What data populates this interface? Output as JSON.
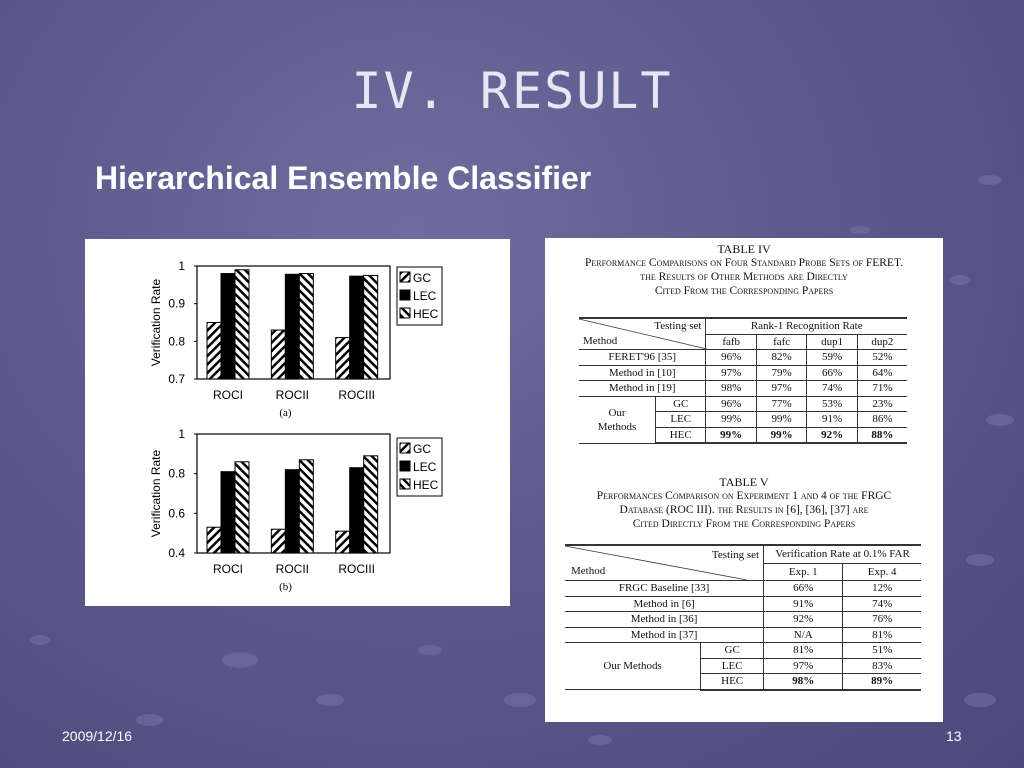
{
  "slide": {
    "title": "IV. RESULT",
    "subtitle": "Hierarchical Ensemble Classifier",
    "date": "2009/12/16",
    "page_number": "13"
  },
  "colors": {
    "background": "#5a5a8c",
    "title": "#e6e6f6",
    "subtitle": "#ffffff"
  },
  "chart_data": [
    {
      "type": "bar",
      "caption": "(a)",
      "ylabel": "Verification Rate",
      "xlabel": "",
      "categories": [
        "ROCI",
        "ROCII",
        "ROCIII"
      ],
      "ylim": [
        0.7,
        1
      ],
      "yticks": [
        "1",
        "0.9",
        "0.8",
        "0.7"
      ],
      "series": [
        {
          "name": "GC",
          "values": [
            0.85,
            0.83,
            0.81
          ]
        },
        {
          "name": "LEC",
          "values": [
            0.98,
            0.978,
            0.973
          ]
        },
        {
          "name": "HEC",
          "values": [
            0.99,
            0.98,
            0.975
          ]
        }
      ],
      "legend_position": "top-right",
      "grid": false
    },
    {
      "type": "bar",
      "caption": "(b)",
      "ylabel": "Verification Rate",
      "xlabel": "",
      "categories": [
        "ROCI",
        "ROCII",
        "ROCIII"
      ],
      "ylim": [
        0.4,
        1
      ],
      "yticks": [
        "1",
        "0.8",
        "0.6",
        "0.4"
      ],
      "series": [
        {
          "name": "GC",
          "values": [
            0.53,
            0.52,
            0.51
          ]
        },
        {
          "name": "LEC",
          "values": [
            0.81,
            0.82,
            0.83
          ]
        },
        {
          "name": "HEC",
          "values": [
            0.86,
            0.87,
            0.89
          ]
        }
      ],
      "legend_position": "top-right",
      "grid": false
    }
  ],
  "table4": {
    "caption_title": "TABLE IV",
    "caption_lines": [
      "Performance Comparisons on Four Standard Probe Sets of FERET.",
      "the Results of Other Methods are Directly",
      "Cited From the Corresponding Papers"
    ],
    "header_testing_set": "Testing set",
    "header_method": "Method",
    "header_group": "Rank-1 Recognition Rate",
    "columns": [
      "fafb",
      "fafc",
      "dup1",
      "dup2"
    ],
    "rows": [
      {
        "method": "FERET'96 [35]",
        "values": [
          "96%",
          "82%",
          "59%",
          "52%"
        ]
      },
      {
        "method": "Method in [10]",
        "values": [
          "97%",
          "79%",
          "66%",
          "64%"
        ]
      },
      {
        "method": "Method in [19]",
        "values": [
          "98%",
          "97%",
          "74%",
          "71%"
        ]
      }
    ],
    "ours_label_1": "Our",
    "ours_label_2": "Methods",
    "ours_rows": [
      {
        "method": "GC",
        "values": [
          "96%",
          "77%",
          "53%",
          "23%"
        ]
      },
      {
        "method": "LEC",
        "values": [
          "99%",
          "99%",
          "91%",
          "86%"
        ]
      },
      {
        "method": "HEC",
        "values": [
          "99%",
          "99%",
          "92%",
          "88%"
        ]
      }
    ]
  },
  "table5": {
    "caption_title": "TABLE V",
    "caption_lines": [
      "Performances Comparison on Experiment 1 and 4 of the FRGC",
      "Database (ROC III). the Results in [6], [36], [37] are",
      "Cited Directly From the Corresponding Papers"
    ],
    "header_testing_set": "Testing set",
    "header_method": "Method",
    "header_group": "Verification Rate at 0.1% FAR",
    "columns": [
      "Exp. 1",
      "Exp. 4"
    ],
    "rows": [
      {
        "method": "FRGC Baseline [33]",
        "values": [
          "66%",
          "12%"
        ]
      },
      {
        "method": "Method in [6]",
        "values": [
          "91%",
          "74%"
        ]
      },
      {
        "method": "Method in [36]",
        "values": [
          "92%",
          "76%"
        ]
      },
      {
        "method": "Method in [37]",
        "values": [
          "N/A",
          "81%"
        ]
      }
    ],
    "ours_label": "Our Methods",
    "ours_rows": [
      {
        "method": "GC",
        "values": [
          "81%",
          "51%"
        ]
      },
      {
        "method": "LEC",
        "values": [
          "97%",
          "83%"
        ]
      },
      {
        "method": "HEC",
        "values": [
          "98%",
          "89%"
        ]
      }
    ]
  }
}
